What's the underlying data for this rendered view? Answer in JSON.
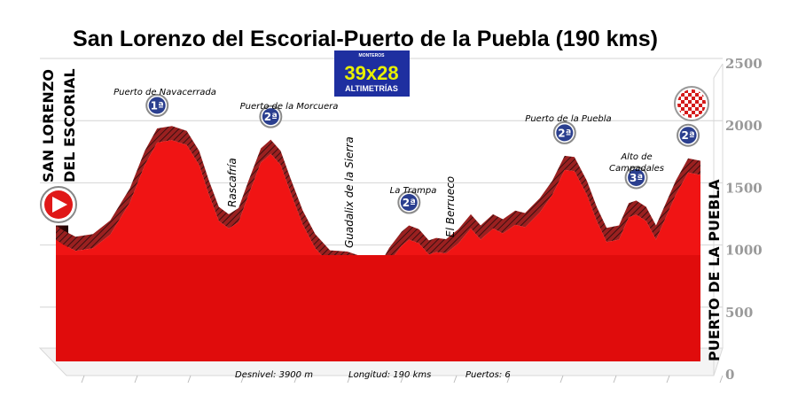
{
  "chart_data": {
    "type": "area",
    "title": "San Lorenzo del Escorial-Puerto de la Puebla (190 kms)",
    "ylim": [
      0,
      2500
    ],
    "yticks": [
      0,
      500,
      1000,
      1500,
      2000,
      2500
    ],
    "grid": true,
    "start_label": [
      "SAN LORENZO",
      "DEL ESCORIAL"
    ],
    "end_label": "PUERTO DE LA PUEBLA",
    "footer": {
      "desnivel": "Desnivel: 3900 m",
      "longitud": "Longitud:  190 kms",
      "puertos": "Puertos: 6"
    },
    "logo": {
      "top": "MONTEROS",
      "main": "39x28",
      "bottom": "ALTIMETRÍAS"
    },
    "profile": [
      [
        0,
        1200
      ],
      [
        3,
        1160
      ],
      [
        8,
        1110
      ],
      [
        15,
        1130
      ],
      [
        22,
        1240
      ],
      [
        30,
        1500
      ],
      [
        36,
        1800
      ],
      [
        41,
        1980
      ],
      [
        47,
        2000
      ],
      [
        53,
        1960
      ],
      [
        58,
        1800
      ],
      [
        62,
        1560
      ],
      [
        66,
        1350
      ],
      [
        70,
        1290
      ],
      [
        74,
        1340
      ],
      [
        78,
        1560
      ],
      [
        83,
        1820
      ],
      [
        87,
        1890
      ],
      [
        91,
        1800
      ],
      [
        95,
        1580
      ],
      [
        100,
        1320
      ],
      [
        105,
        1130
      ],
      [
        111,
        1000
      ],
      [
        118,
        990
      ],
      [
        124,
        950
      ],
      [
        128,
        900
      ],
      [
        131,
        880
      ],
      [
        135,
        1020
      ],
      [
        140,
        1150
      ],
      [
        143,
        1200
      ],
      [
        147,
        1170
      ],
      [
        151,
        1080
      ],
      [
        154,
        1100
      ],
      [
        158,
        1090
      ],
      [
        163,
        1170
      ],
      [
        168,
        1290
      ],
      [
        172,
        1200
      ],
      [
        177,
        1290
      ],
      [
        181,
        1250
      ],
      [
        186,
        1320
      ],
      [
        190,
        1300
      ],
      [
        196,
        1420
      ],
      [
        201,
        1560
      ],
      [
        206,
        1760
      ],
      [
        210,
        1750
      ],
      [
        215,
        1560
      ],
      [
        219,
        1350
      ],
      [
        223,
        1180
      ],
      [
        228,
        1200
      ],
      [
        232,
        1380
      ],
      [
        235,
        1400
      ],
      [
        239,
        1350
      ],
      [
        243,
        1200
      ],
      [
        247,
        1380
      ],
      [
        251,
        1560
      ],
      [
        256,
        1740
      ],
      [
        261,
        1720
      ]
    ],
    "annotations": [
      {
        "label": "Puerto de Navacerrada",
        "category": "1ª",
        "x": 41,
        "y": 1980
      },
      {
        "label": "Puerto de la Morcuera",
        "category": "2ª",
        "x": 87,
        "y": 1890
      },
      {
        "label": "La Trampa",
        "category": "2ª",
        "x": 143,
        "y": 1200
      },
      {
        "label": "Puerto de la Puebla",
        "category": "2ª",
        "x": 206,
        "y": 1760
      },
      {
        "label": "Alto de Campadales",
        "category": "3ª",
        "x": 235,
        "y": 1400
      },
      {
        "label": "",
        "category": "2ª",
        "x": 256,
        "y": 1740
      }
    ],
    "towns": [
      {
        "label": "Rascafría",
        "x": 66
      },
      {
        "label": "Guadalix de la Sierra",
        "x": 111
      },
      {
        "label": "El Berrueco",
        "x": 153
      }
    ]
  },
  "colors": {
    "fill": "#ee1111",
    "fill_dark": "#c80808",
    "hatch": "#7a2a2a",
    "logo_bg": "#1e2fa0",
    "badge": "#2b3f8f"
  }
}
